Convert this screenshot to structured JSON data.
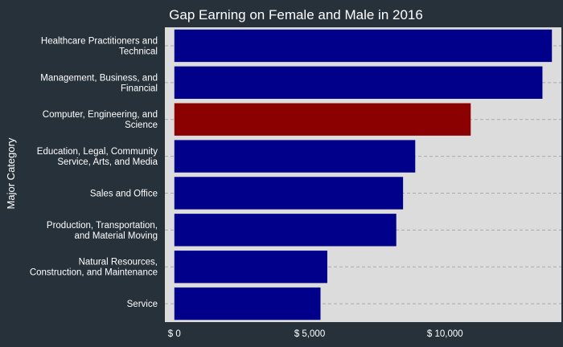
{
  "chart_data": {
    "type": "bar",
    "orientation": "horizontal",
    "title": "Gap Earning on Female and Male in 2016",
    "ylabel": "Major Category",
    "xlabel": "",
    "categories": [
      [
        "Healthcare Practitioners and",
        "Technical"
      ],
      [
        "Management, Business, and",
        "Financial"
      ],
      [
        "Computer, Engineering, and",
        "Science"
      ],
      [
        "Education, Legal, Community",
        "Service, Arts, and Media"
      ],
      [
        "Sales and Office"
      ],
      [
        "Production, Transportation,",
        "and Material Moving"
      ],
      [
        "Natural Resources,",
        "Construction, and Maintenance"
      ],
      [
        "Service"
      ]
    ],
    "values": [
      13950,
      13600,
      10950,
      8900,
      8450,
      8200,
      5650,
      5400
    ],
    "highlight_index": 2,
    "xlim": [
      -350,
      14300
    ],
    "xticks": [
      {
        "value": 0,
        "label": "$ 0"
      },
      {
        "value": 5000,
        "label": "$ 5,000"
      },
      {
        "value": 10000,
        "label": "$ 10,000"
      }
    ],
    "grid": {
      "major_y": true,
      "style": "dashed"
    },
    "legend": "none"
  },
  "colors": {
    "background": "#273139",
    "panel": "#dcdcdc",
    "bar": "#00008b",
    "highlight": "#8b0000",
    "grid": "#a9a9a9",
    "text": "#ffffff"
  }
}
